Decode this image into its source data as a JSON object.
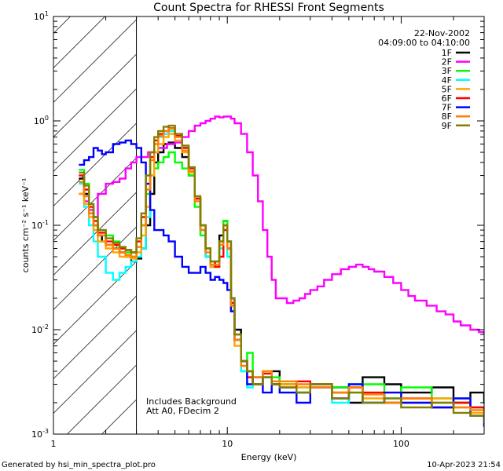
{
  "chart_data": {
    "type": "line",
    "title": "Count Spectra for RHESSI Front Segments",
    "xlabel": "Energy (keV)",
    "ylabel": "counts cm⁻² s⁻¹ keV⁻¹",
    "xscale": "log",
    "yscale": "log",
    "xlim": [
      1,
      300
    ],
    "ylim": [
      0.001,
      10
    ],
    "x_ticks": [
      {
        "value": 1,
        "label": "1"
      },
      {
        "value": 10,
        "label": "10"
      },
      {
        "value": 100,
        "label": "100"
      }
    ],
    "y_ticks": [
      {
        "value": 10,
        "base": "10",
        "exp": "1"
      },
      {
        "value": 1,
        "base": "10",
        "exp": "0"
      },
      {
        "value": 0.1,
        "base": "10",
        "exp": "-1"
      },
      {
        "value": 0.01,
        "base": "10",
        "exp": "-2"
      },
      {
        "value": 0.001,
        "base": "10",
        "exp": "-3"
      }
    ],
    "hatched_region": [
      1,
      3
    ],
    "legend": {
      "placement": "top-right",
      "date": "22-Nov-2002",
      "time_range": "04:09:00 to 04:10:00"
    },
    "annotations": [
      "Includes Background",
      "Att A0, FDecim 2"
    ],
    "series": [
      {
        "name": "1F",
        "color": "#000000",
        "x": [
          1.4,
          1.5,
          1.6,
          1.7,
          1.8,
          1.9,
          2.0,
          2.2,
          2.4,
          2.6,
          2.8,
          3.0,
          3.2,
          3.4,
          3.6,
          3.8,
          4.0,
          4.3,
          4.6,
          5.0,
          5.5,
          6.0,
          6.5,
          7.0,
          7.5,
          8.0,
          8.5,
          9.0,
          9.5,
          10.0,
          10.5,
          11,
          12,
          13,
          14,
          16,
          18,
          20,
          25,
          30,
          40,
          50,
          60,
          80,
          100,
          150,
          200,
          250,
          300
        ],
        "y": [
          0.28,
          0.2,
          0.13,
          0.1,
          0.08,
          0.07,
          0.065,
          0.06,
          0.055,
          0.05,
          0.045,
          0.048,
          0.06,
          0.1,
          0.2,
          0.4,
          0.5,
          0.6,
          0.62,
          0.55,
          0.45,
          0.3,
          0.18,
          0.09,
          0.05,
          0.04,
          0.045,
          0.08,
          0.11,
          0.07,
          0.02,
          0.01,
          0.005,
          0.004,
          0.003,
          0.0035,
          0.004,
          0.003,
          0.0025,
          0.003,
          0.0028,
          0.002,
          0.0035,
          0.003,
          0.0025,
          0.0028,
          0.002,
          0.0025,
          0.002
        ]
      },
      {
        "name": "2F",
        "color": "#ff00ff",
        "x": [
          1.4,
          1.5,
          1.6,
          1.7,
          1.8,
          2.0,
          2.2,
          2.4,
          2.6,
          2.8,
          3.0,
          3.5,
          4.0,
          4.5,
          5.0,
          5.5,
          6.0,
          6.5,
          7.0,
          7.5,
          8.0,
          8.5,
          9.0,
          9.5,
          10.0,
          10.5,
          11,
          12,
          13,
          14,
          15,
          16,
          17,
          18,
          19,
          20,
          22,
          24,
          26,
          28,
          30,
          33,
          36,
          40,
          45,
          50,
          55,
          60,
          65,
          70,
          80,
          90,
          100,
          110,
          120,
          140,
          160,
          180,
          200,
          220,
          250,
          280,
          300
        ],
        "y": [
          0.2,
          0.17,
          0.14,
          0.12,
          0.2,
          0.25,
          0.26,
          0.28,
          0.35,
          0.4,
          0.45,
          0.5,
          0.55,
          0.6,
          0.62,
          0.7,
          0.8,
          0.9,
          0.95,
          1.0,
          1.05,
          1.1,
          1.08,
          1.1,
          1.1,
          1.05,
          0.95,
          0.75,
          0.5,
          0.3,
          0.17,
          0.09,
          0.05,
          0.03,
          0.02,
          0.02,
          0.018,
          0.019,
          0.02,
          0.022,
          0.024,
          0.026,
          0.03,
          0.034,
          0.038,
          0.04,
          0.042,
          0.04,
          0.038,
          0.036,
          0.032,
          0.028,
          0.024,
          0.021,
          0.019,
          0.017,
          0.015,
          0.014,
          0.012,
          0.011,
          0.01,
          0.0095,
          0.0092
        ]
      },
      {
        "name": "3F",
        "color": "#00ff00",
        "x": [
          1.4,
          1.5,
          1.6,
          1.7,
          1.8,
          2.0,
          2.2,
          2.4,
          2.6,
          2.8,
          3.0,
          3.2,
          3.4,
          3.6,
          3.8,
          4.0,
          4.3,
          4.6,
          5.0,
          5.5,
          6.0,
          6.5,
          7.0,
          7.5,
          8.0,
          8.5,
          9.0,
          9.5,
          10,
          10.5,
          11,
          12,
          13,
          14,
          16,
          18,
          20,
          25,
          30,
          40,
          50,
          60,
          80,
          100,
          150,
          200,
          250,
          300
        ],
        "y": [
          0.34,
          0.25,
          0.16,
          0.12,
          0.09,
          0.08,
          0.07,
          0.06,
          0.055,
          0.05,
          0.07,
          0.1,
          0.2,
          0.3,
          0.35,
          0.4,
          0.45,
          0.5,
          0.4,
          0.35,
          0.3,
          0.15,
          0.08,
          0.06,
          0.04,
          0.04,
          0.07,
          0.11,
          0.06,
          0.015,
          0.008,
          0.004,
          0.006,
          0.003,
          0.004,
          0.0035,
          0.003,
          0.0025,
          0.003,
          0.0028,
          0.0025,
          0.003,
          0.002,
          0.0028,
          0.0022,
          0.002,
          0.0018,
          0.0015
        ]
      },
      {
        "name": "4F",
        "color": "#00ffff",
        "x": [
          1.4,
          1.5,
          1.6,
          1.7,
          1.8,
          2.0,
          2.2,
          2.4,
          2.6,
          2.8,
          3.0,
          3.2,
          3.4,
          3.6,
          3.8,
          4.0,
          4.3,
          4.6,
          5.0,
          5.5,
          6.0,
          6.5,
          7.0,
          7.5,
          8.0,
          8.5,
          9.0,
          9.5,
          10,
          10.5,
          11,
          12,
          13,
          14,
          16,
          18,
          20,
          25,
          30,
          40,
          50,
          60,
          80,
          100,
          150,
          200,
          250,
          300
        ],
        "y": [
          0.25,
          0.15,
          0.1,
          0.07,
          0.05,
          0.035,
          0.03,
          0.035,
          0.04,
          0.045,
          0.05,
          0.06,
          0.12,
          0.3,
          0.5,
          0.7,
          0.75,
          0.8,
          0.7,
          0.55,
          0.35,
          0.18,
          0.09,
          0.05,
          0.04,
          0.04,
          0.06,
          0.09,
          0.05,
          0.015,
          0.008,
          0.004,
          0.0028,
          0.003,
          0.0035,
          0.003,
          0.0025,
          0.0028,
          0.003,
          0.002,
          0.003,
          0.0025,
          0.0022,
          0.002,
          0.0018,
          0.0022,
          0.0018,
          0.0015
        ]
      },
      {
        "name": "5F",
        "color": "#ffa500",
        "x": [
          1.4,
          1.5,
          1.6,
          1.7,
          1.8,
          2.0,
          2.2,
          2.4,
          2.6,
          2.8,
          3.0,
          3.2,
          3.4,
          3.6,
          3.8,
          4.0,
          4.3,
          4.6,
          5.0,
          5.5,
          6.0,
          6.5,
          7.0,
          7.5,
          8.0,
          8.5,
          9.0,
          9.5,
          10,
          10.5,
          11,
          12,
          13,
          14,
          16,
          18,
          20,
          25,
          30,
          40,
          50,
          60,
          80,
          100,
          150,
          200,
          250,
          300
        ],
        "y": [
          0.2,
          0.16,
          0.12,
          0.09,
          0.07,
          0.06,
          0.055,
          0.05,
          0.05,
          0.048,
          0.055,
          0.08,
          0.15,
          0.3,
          0.5,
          0.6,
          0.7,
          0.75,
          0.65,
          0.5,
          0.32,
          0.18,
          0.1,
          0.06,
          0.04,
          0.045,
          0.07,
          0.1,
          0.06,
          0.015,
          0.007,
          0.0045,
          0.004,
          0.0035,
          0.004,
          0.0032,
          0.003,
          0.0028,
          0.003,
          0.0025,
          0.0028,
          0.0022,
          0.0025,
          0.002,
          0.0022,
          0.0018,
          0.0016,
          0.0014
        ]
      },
      {
        "name": "6F",
        "color": "#ff0000",
        "x": [
          1.4,
          1.5,
          1.6,
          1.7,
          1.8,
          2.0,
          2.2,
          2.4,
          2.6,
          2.8,
          3.0,
          3.2,
          3.4,
          3.6,
          3.8,
          4.0,
          4.3,
          4.6,
          5.0,
          5.5,
          6.0,
          6.5,
          7.0,
          7.5,
          8.0,
          8.5,
          9.0,
          9.5,
          10,
          10.5,
          11,
          12,
          13,
          14,
          16,
          18,
          20,
          25,
          30,
          40,
          50,
          60,
          80,
          100,
          150,
          200,
          250,
          300
        ],
        "y": [
          0.3,
          0.22,
          0.15,
          0.11,
          0.085,
          0.07,
          0.065,
          0.06,
          0.058,
          0.055,
          0.07,
          0.12,
          0.25,
          0.45,
          0.65,
          0.75,
          0.8,
          0.85,
          0.72,
          0.55,
          0.35,
          0.18,
          0.1,
          0.06,
          0.045,
          0.04,
          0.05,
          0.09,
          0.06,
          0.018,
          0.009,
          0.005,
          0.0035,
          0.003,
          0.0038,
          0.003,
          0.0028,
          0.0032,
          0.003,
          0.0025,
          0.0028,
          0.0025,
          0.002,
          0.0022,
          0.0018,
          0.002,
          0.0018,
          0.0015
        ]
      },
      {
        "name": "7F",
        "color": "#0000ff",
        "x": [
          1.4,
          1.5,
          1.6,
          1.7,
          1.8,
          1.9,
          2.0,
          2.2,
          2.4,
          2.6,
          2.8,
          3.0,
          3.2,
          3.4,
          3.6,
          3.8,
          4.0,
          4.3,
          4.6,
          5.0,
          5.5,
          6.0,
          6.5,
          7.0,
          7.5,
          8.0,
          8.5,
          9.0,
          9.5,
          10,
          10.5,
          11,
          12,
          13,
          14,
          16,
          18,
          20,
          25,
          30,
          40,
          50,
          60,
          80,
          100,
          150,
          200,
          250,
          300
        ],
        "y": [
          0.38,
          0.42,
          0.45,
          0.55,
          0.52,
          0.48,
          0.5,
          0.6,
          0.62,
          0.65,
          0.6,
          0.55,
          0.4,
          0.25,
          0.14,
          0.09,
          0.09,
          0.08,
          0.07,
          0.05,
          0.04,
          0.035,
          0.035,
          0.04,
          0.035,
          0.03,
          0.032,
          0.03,
          0.028,
          0.024,
          0.015,
          0.008,
          0.005,
          0.003,
          0.0035,
          0.0025,
          0.003,
          0.0025,
          0.002,
          0.0028,
          0.0022,
          0.003,
          0.002,
          0.0025,
          0.002,
          0.0018,
          0.0022,
          0.0015,
          0.0012
        ]
      },
      {
        "name": "8F",
        "color": "#ff7f00",
        "x": [
          1.4,
          1.5,
          1.6,
          1.7,
          1.8,
          2.0,
          2.2,
          2.4,
          2.6,
          2.8,
          3.0,
          3.2,
          3.4,
          3.6,
          3.8,
          4.0,
          4.3,
          4.6,
          5.0,
          5.5,
          6.0,
          6.5,
          7.0,
          7.5,
          8.0,
          8.5,
          9.0,
          9.5,
          10,
          10.5,
          11,
          12,
          13,
          14,
          16,
          18,
          20,
          25,
          30,
          40,
          50,
          60,
          80,
          100,
          150,
          200,
          250,
          300
        ],
        "y": [
          0.26,
          0.19,
          0.13,
          0.1,
          0.08,
          0.065,
          0.06,
          0.055,
          0.052,
          0.05,
          0.062,
          0.1,
          0.22,
          0.42,
          0.6,
          0.72,
          0.8,
          0.84,
          0.7,
          0.52,
          0.33,
          0.17,
          0.09,
          0.055,
          0.042,
          0.042,
          0.065,
          0.1,
          0.06,
          0.017,
          0.008,
          0.0045,
          0.004,
          0.0035,
          0.004,
          0.0032,
          0.0032,
          0.003,
          0.0028,
          0.0025,
          0.0028,
          0.0024,
          0.002,
          0.0022,
          0.002,
          0.0018,
          0.0017,
          0.0015
        ]
      },
      {
        "name": "9F",
        "color": "#808000",
        "x": [
          1.4,
          1.5,
          1.6,
          1.7,
          1.8,
          2.0,
          2.2,
          2.4,
          2.6,
          2.8,
          3.0,
          3.2,
          3.4,
          3.6,
          3.8,
          4.0,
          4.3,
          4.6,
          5.0,
          5.5,
          6.0,
          6.5,
          7.0,
          7.5,
          8.0,
          8.5,
          9.0,
          9.5,
          10,
          10.5,
          11,
          12,
          13,
          14,
          16,
          18,
          20,
          25,
          30,
          40,
          50,
          60,
          80,
          100,
          150,
          200,
          250,
          300
        ],
        "y": [
          0.32,
          0.24,
          0.16,
          0.12,
          0.09,
          0.075,
          0.068,
          0.062,
          0.058,
          0.055,
          0.075,
          0.13,
          0.3,
          0.5,
          0.7,
          0.8,
          0.88,
          0.9,
          0.75,
          0.58,
          0.36,
          0.19,
          0.1,
          0.06,
          0.045,
          0.045,
          0.07,
          0.1,
          0.07,
          0.02,
          0.009,
          0.005,
          0.004,
          0.003,
          0.0035,
          0.003,
          0.0028,
          0.0025,
          0.003,
          0.0022,
          0.0025,
          0.002,
          0.0022,
          0.0018,
          0.002,
          0.0016,
          0.0015,
          0.0013
        ]
      }
    ]
  },
  "footer": {
    "left": "Generated by hsi_min_spectra_plot.pro",
    "right": "10-Apr-2023 21:54"
  }
}
